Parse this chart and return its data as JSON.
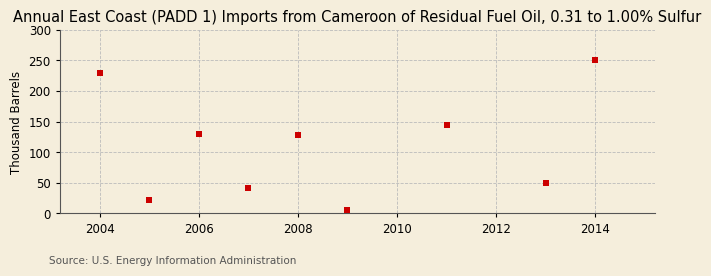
{
  "title": "Annual East Coast (PADD 1) Imports from Cameroon of Residual Fuel Oil, 0.31 to 1.00% Sulfur",
  "ylabel": "Thousand Barrels",
  "source": "Source: U.S. Energy Information Administration",
  "years": [
    2004,
    2005,
    2006,
    2007,
    2008,
    2009,
    2011,
    2013,
    2014
  ],
  "values": [
    230,
    22,
    130,
    42,
    128,
    5,
    145,
    50,
    250
  ],
  "marker_color": "#cc0000",
  "marker": "s",
  "marker_size": 4,
  "xlim": [
    2003.2,
    2015.2
  ],
  "ylim": [
    0,
    300
  ],
  "xticks": [
    2004,
    2006,
    2008,
    2010,
    2012,
    2014
  ],
  "yticks": [
    0,
    50,
    100,
    150,
    200,
    250,
    300
  ],
  "background_color": "#f5eedc",
  "grid_color": "#bbbbbb",
  "title_fontsize": 10.5,
  "label_fontsize": 8.5,
  "tick_fontsize": 8.5,
  "source_fontsize": 7.5
}
